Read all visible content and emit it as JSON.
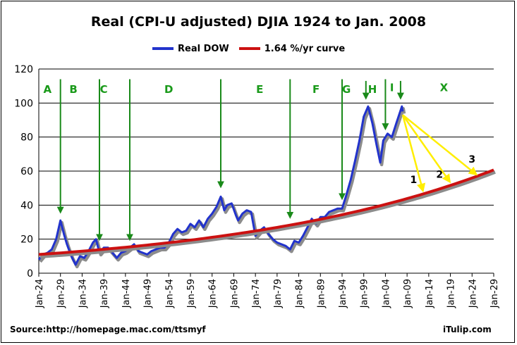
{
  "chart_data": {
    "type": "line",
    "title": "Real (CPI-U adjusted) DJIA 1924 to Jan. 2008",
    "ylim": [
      0,
      120
    ],
    "yticks": [
      0,
      20,
      40,
      60,
      80,
      100,
      120
    ],
    "xlim": [
      1924,
      2029
    ],
    "xtick_labels": [
      "Jan-24",
      "Jan-29",
      "Jan-34",
      "Jan-39",
      "Jan-44",
      "Jan-49",
      "Jan-54",
      "Jan-59",
      "Jan-64",
      "Jan-69",
      "Jan-74",
      "Jan-79",
      "Jan-84",
      "Jan-89",
      "Jan-94",
      "Jan-99",
      "Jan-04",
      "Jan-09",
      "Jan-14",
      "Jan-19",
      "Jan-24",
      "Jan-29"
    ],
    "grid": "horizontal",
    "legend_position": "top",
    "series": [
      {
        "name": "Real DOW",
        "color": "#2233cc",
        "points": [
          [
            1924,
            8
          ],
          [
            1925,
            11
          ],
          [
            1926,
            12
          ],
          [
            1927,
            14
          ],
          [
            1928,
            20
          ],
          [
            1929,
            31
          ],
          [
            1929.8,
            23
          ],
          [
            1930.5,
            17
          ],
          [
            1931.5,
            10
          ],
          [
            1932.5,
            5
          ],
          [
            1933.5,
            10
          ],
          [
            1934.5,
            9
          ],
          [
            1935.5,
            13
          ],
          [
            1936.5,
            18
          ],
          [
            1937.2,
            20
          ],
          [
            1938,
            12
          ],
          [
            1939,
            15
          ],
          [
            1940,
            15
          ],
          [
            1941,
            12
          ],
          [
            1942,
            9
          ],
          [
            1943,
            12
          ],
          [
            1944,
            13
          ],
          [
            1945,
            15
          ],
          [
            1946,
            17
          ],
          [
            1947,
            13
          ],
          [
            1948,
            12
          ],
          [
            1949,
            11
          ],
          [
            1950,
            13
          ],
          [
            1951,
            14
          ],
          [
            1952,
            15
          ],
          [
            1953,
            15
          ],
          [
            1954,
            18
          ],
          [
            1955,
            23
          ],
          [
            1956,
            26
          ],
          [
            1957,
            24
          ],
          [
            1958,
            25
          ],
          [
            1959,
            29
          ],
          [
            1960,
            27
          ],
          [
            1961,
            31
          ],
          [
            1962,
            27
          ],
          [
            1963,
            32
          ],
          [
            1964,
            35
          ],
          [
            1965,
            39
          ],
          [
            1966,
            45
          ],
          [
            1966.8,
            37
          ],
          [
            1967.5,
            40
          ],
          [
            1968.5,
            41
          ],
          [
            1969.5,
            34
          ],
          [
            1970,
            31
          ],
          [
            1971,
            35
          ],
          [
            1972,
            37
          ],
          [
            1973,
            36
          ],
          [
            1974,
            22
          ],
          [
            1975,
            25
          ],
          [
            1976,
            27
          ],
          [
            1977,
            23
          ],
          [
            1978,
            20
          ],
          [
            1979,
            18
          ],
          [
            1980,
            17
          ],
          [
            1981,
            16
          ],
          [
            1982,
            14
          ],
          [
            1983,
            19
          ],
          [
            1984,
            18
          ],
          [
            1985,
            22
          ],
          [
            1986,
            27
          ],
          [
            1987,
            32
          ],
          [
            1988,
            29
          ],
          [
            1989,
            33
          ],
          [
            1990,
            33
          ],
          [
            1991,
            36
          ],
          [
            1992,
            37
          ],
          [
            1993,
            38
          ],
          [
            1994,
            38
          ],
          [
            1995,
            46
          ],
          [
            1996,
            55
          ],
          [
            1997,
            66
          ],
          [
            1998,
            78
          ],
          [
            1999,
            92
          ],
          [
            2000,
            98
          ],
          [
            2001,
            88
          ],
          [
            2002,
            75
          ],
          [
            2002.8,
            65
          ],
          [
            2003.5,
            78
          ],
          [
            2004.5,
            82
          ],
          [
            2005.5,
            80
          ],
          [
            2006.5,
            88
          ],
          [
            2007.8,
            98
          ],
          [
            2008,
            95
          ]
        ]
      },
      {
        "name": "1.64 %/yr curve",
        "color": "#cc1111",
        "base_year": 1924,
        "base_value": 11,
        "rate": 0.0164,
        "x_end": 2029
      }
    ],
    "annotations": {
      "letters": [
        {
          "label": "A",
          "x": 1926,
          "y": 106
        },
        {
          "label": "B",
          "x": 1932,
          "y": 106
        },
        {
          "label": "C",
          "x": 1939,
          "y": 106
        },
        {
          "label": "D",
          "x": 1954,
          "y": 106
        },
        {
          "label": "E",
          "x": 1975,
          "y": 106
        },
        {
          "label": "F",
          "x": 1988,
          "y": 106
        },
        {
          "label": "G",
          "x": 1995,
          "y": 106
        },
        {
          "label": "H",
          "x": 2001,
          "y": 106
        },
        {
          "label": "I",
          "x": 2005.5,
          "y": 107
        },
        {
          "label": "X",
          "x": 2017.5,
          "y": 107
        }
      ],
      "down_arrows": [
        {
          "x": 1929,
          "y1": 114,
          "y2": 37
        },
        {
          "x": 1938,
          "y1": 114,
          "y2": 21
        },
        {
          "x": 1945,
          "y1": 114,
          "y2": 21
        },
        {
          "x": 1966,
          "y1": 114,
          "y2": 52
        },
        {
          "x": 1982,
          "y1": 114,
          "y2": 34
        },
        {
          "x": 1994,
          "y1": 114,
          "y2": 45
        },
        {
          "x": 1999.5,
          "y1": 113,
          "y2": 104
        },
        {
          "x": 2004,
          "y1": 114,
          "y2": 86
        },
        {
          "x": 2007.5,
          "y1": 113,
          "y2": 104
        }
      ],
      "projection_origin": {
        "x": 2008,
        "y": 93
      },
      "projection_targets": [
        {
          "label": "1",
          "x": 2012.5,
          "y": 50,
          "label_x": 2010.5,
          "label_y": 53
        },
        {
          "label": "2",
          "x": 2018.5,
          "y": 55,
          "label_x": 2016.5,
          "label_y": 56
        },
        {
          "label": "3",
          "x": 2024.5,
          "y": 59,
          "label_x": 2024,
          "label_y": 65
        }
      ]
    }
  },
  "footer": {
    "source": "Source:http://homepage.mac.com/ttsmyf",
    "credit": "iTulip.com"
  }
}
